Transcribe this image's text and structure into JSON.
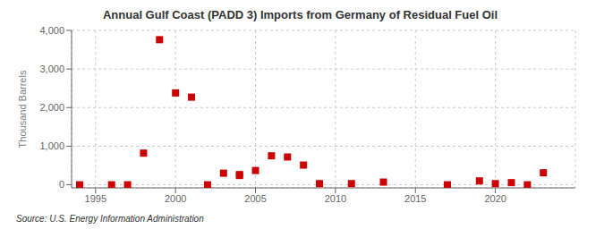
{
  "chart_data": {
    "type": "scatter",
    "title": "Annual Gulf Coast (PADD 3) Imports from Germany of Residual Fuel Oil",
    "y_label": "Thousand Barrels",
    "annotations": [
      "Source: U.S. Energy Information Administration"
    ],
    "x": [
      1994,
      1996,
      1997,
      1998,
      1999,
      2000,
      2001,
      2002,
      2003,
      2004,
      2004,
      2005,
      2006,
      2007,
      2008,
      2009,
      2011,
      2013,
      2017,
      2019,
      2020,
      2021,
      2022,
      2023
    ],
    "values": [
      0,
      0,
      0,
      820,
      3760,
      2380,
      2270,
      0,
      300,
      265,
      240,
      370,
      750,
      720,
      510,
      30,
      30,
      70,
      0,
      100,
      30,
      55,
      0,
      310
    ],
    "color": "#cc0000",
    "marker": "square",
    "xlim": [
      1993.5,
      2025
    ],
    "xticks": [
      1995,
      2000,
      2005,
      2010,
      2015,
      2020
    ],
    "ylim": [
      -80,
      4000
    ],
    "yticks": [
      0,
      {
        "value": 1000,
        "label": "1,000"
      },
      {
        "value": 2000,
        "label": "2,000"
      },
      {
        "value": 3000,
        "label": "3,000"
      },
      {
        "value": 4000,
        "label": "4,000"
      }
    ],
    "grid": true
  }
}
